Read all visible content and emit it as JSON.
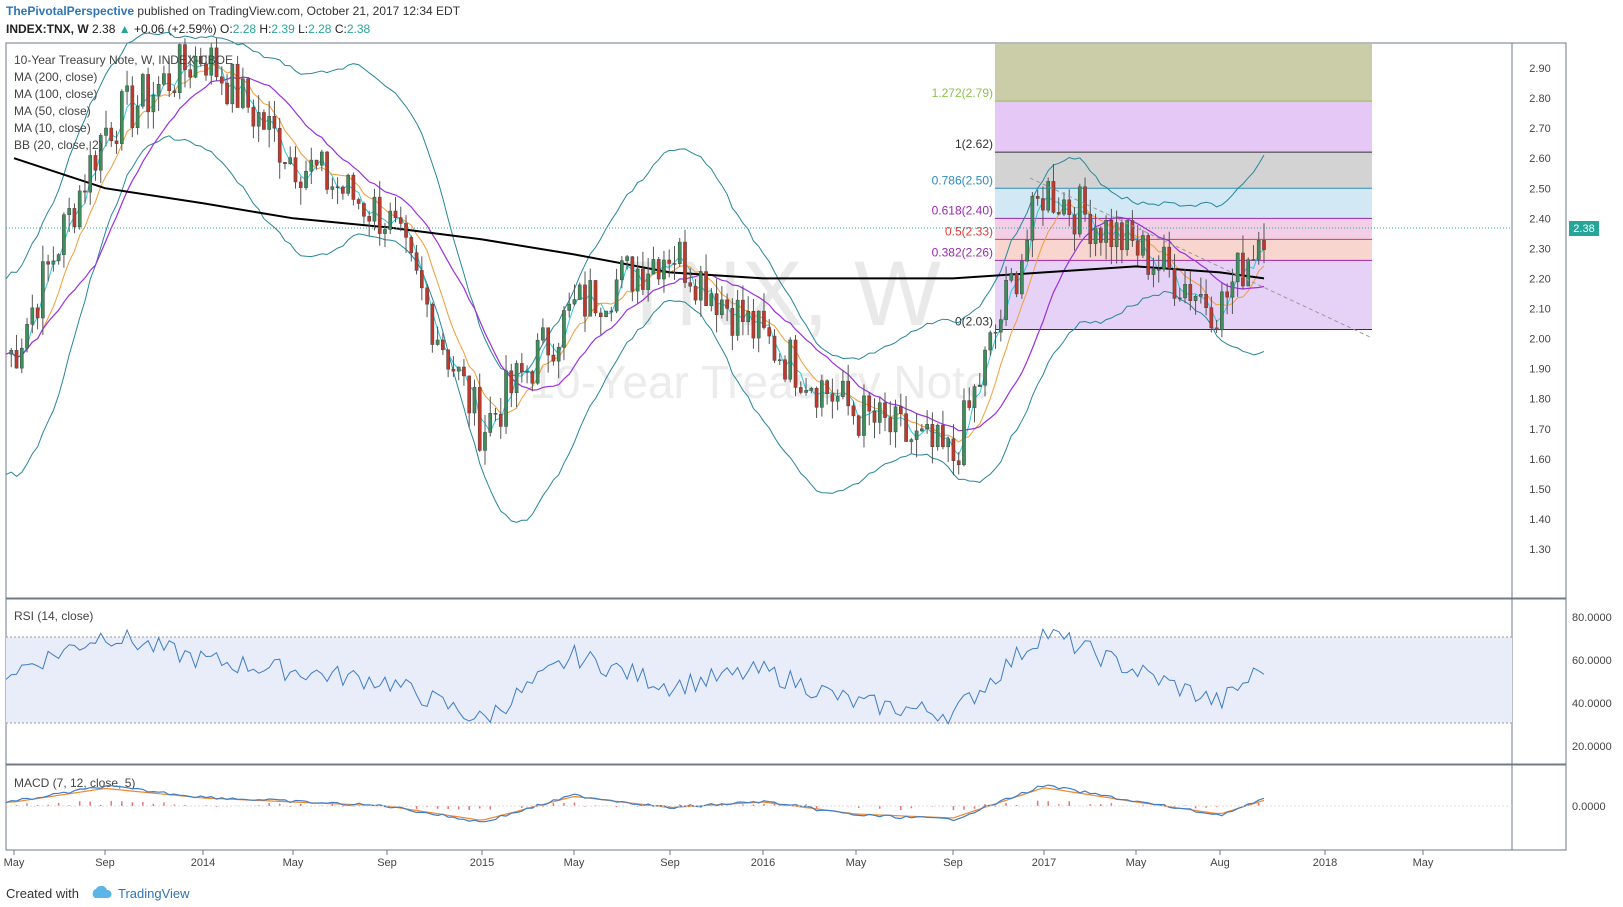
{
  "header": {
    "author": "ThePivotalPerspective",
    "published": "published on TradingView.com, October 21, 2017 12:34 EDT",
    "symbol": "INDEX:TNX, W",
    "last": "2.38",
    "arrow": "▲",
    "change": "+0.06 (+2.59%)",
    "o_label": "O:",
    "o": "2.28",
    "h_label": "H:",
    "h": "2.39",
    "l_label": "L:",
    "l": "2.28",
    "c_label": "C:",
    "c": "2.38"
  },
  "legend": {
    "title": "10-Year Treasury Note, W, INDEX-CBOE",
    "items": [
      "MA (200, close)",
      "MA (100, close)",
      "MA (50, close)",
      "MA (10, close)",
      "BB (20, close, 2)"
    ]
  },
  "watermark": {
    "big": "TNX, W",
    "small": "10-Year Treasury Note"
  },
  "price_axis": {
    "ticks": [
      "1.30",
      "1.40",
      "1.50",
      "1.60",
      "1.70",
      "1.80",
      "1.90",
      "2.00",
      "2.10",
      "2.20",
      "2.30",
      "2.40",
      "2.50",
      "2.60",
      "2.70",
      "2.80",
      "2.90"
    ],
    "current": "2.38"
  },
  "rsi": {
    "label": "RSI (14, close)",
    "ticks": [
      "80.0000",
      "60.0000",
      "40.0000",
      "20.0000"
    ]
  },
  "macd": {
    "label": "MACD (7, 12, close, 5)",
    "ticks": [
      "0.0000"
    ]
  },
  "time_axis": [
    "May",
    "Sep",
    "2014",
    "May",
    "Sep",
    "2015",
    "May",
    "Sep",
    "2016",
    "May",
    "Sep",
    "2017",
    "May",
    "Aug",
    "2018",
    "May",
    "Sep"
  ],
  "fib": [
    {
      "label": "1.272(2.79)",
      "color": "#8bc34a"
    },
    {
      "label": "1(2.62)",
      "color": "#333333"
    },
    {
      "label": "0.786(2.50)",
      "color": "#2e8bc0"
    },
    {
      "label": "0.618(2.40)",
      "color": "#9c27b0"
    },
    {
      "label": "0.5(2.33)",
      "color": "#e53935"
    },
    {
      "label": "0.382(2.26)",
      "color": "#9c27b0"
    },
    {
      "label": "0(2.03)",
      "color": "#333333"
    }
  ],
  "footer": {
    "created": "Created with",
    "brand": "TradingView"
  },
  "colors": {
    "up": "#26a69a",
    "down": "#ef5350",
    "candle_up": "#3c8f5a",
    "candle_down": "#c0392b",
    "bb": "#26869a",
    "ma10": "#2ec9d6",
    "ma50": "#f39c36",
    "ma100": "#9b30e0",
    "ma200": "#000000"
  },
  "chart_data": {
    "type": "line",
    "title": "10-Year Treasury Note, W, INDEX-CBOE",
    "ylim": [
      1.2,
      3.0
    ],
    "x": [
      "2013-05",
      "2013-09",
      "2014-01",
      "2014-05",
      "2014-09",
      "2015-01",
      "2015-05",
      "2015-09",
      "2016-01",
      "2016-05",
      "2016-09",
      "2017-01",
      "2017-05",
      "2017-08",
      "2017-10"
    ],
    "series": [
      {
        "name": "TNX close",
        "values": [
          1.95,
          2.7,
          2.95,
          2.6,
          2.4,
          1.7,
          2.1,
          2.3,
          2.0,
          1.75,
          1.6,
          2.5,
          2.3,
          2.1,
          2.38
        ]
      },
      {
        "name": "MA (200, close)",
        "values": [
          2.6,
          2.5,
          2.45,
          2.4,
          2.37,
          2.33,
          2.28,
          2.22,
          2.2,
          2.2,
          2.2,
          2.22,
          2.24,
          2.22,
          2.2
        ]
      },
      {
        "name": "RSI (14, close)",
        "values": [
          55,
          72,
          60,
          55,
          50,
          32,
          62,
          48,
          55,
          40,
          35,
          73,
          55,
          40,
          57
        ]
      }
    ]
  }
}
